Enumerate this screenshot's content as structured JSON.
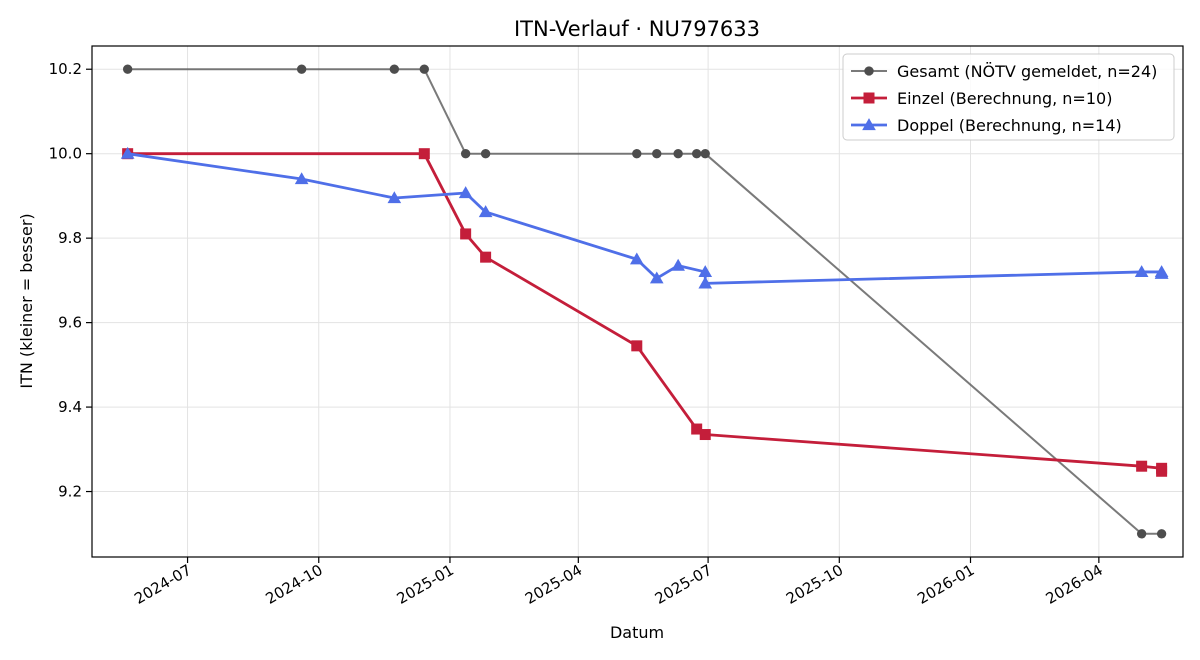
{
  "chart_data": {
    "type": "line",
    "title": "ITN-Verlauf · NU797633",
    "xlabel": "Datum",
    "ylabel": "ITN  (kleiner = besser)",
    "x_axis_type": "date",
    "xlim": [
      "2024-04-25",
      "2026-05-30"
    ],
    "ylim": [
      9.045,
      10.255
    ],
    "x_ticks": [
      "2024-07-01",
      "2024-10-01",
      "2025-01-01",
      "2025-04-01",
      "2025-07-01",
      "2025-10-01",
      "2026-01-01",
      "2026-04-01"
    ],
    "x_tick_labels": [
      "2024-07",
      "2024-10",
      "2025-01",
      "2025-04",
      "2025-07",
      "2025-10",
      "2026-01",
      "2026-04"
    ],
    "y_ticks": [
      9.2,
      9.4,
      9.6,
      9.8,
      10.0,
      10.2
    ],
    "y_tick_labels": [
      "9.2",
      "9.4",
      "9.6",
      "9.8",
      "10.0",
      "10.2"
    ],
    "grid": true,
    "legend_position": "top-right",
    "series": [
      {
        "name": "Gesamt (NÖTV gemeldet, n=24)",
        "color": "#4d4d4d",
        "marker": "circle",
        "x": [
          "2024-05-20",
          "2024-09-19",
          "2024-11-23",
          "2024-12-14",
          "2025-01-12",
          "2025-01-26",
          "2025-05-12",
          "2025-05-26",
          "2025-06-10",
          "2025-06-23",
          "2025-06-29",
          "2026-05-01",
          "2026-05-15"
        ],
        "y": [
          10.2,
          10.2,
          10.2,
          10.2,
          10.0,
          10.0,
          10.0,
          10.0,
          10.0,
          10.0,
          10.0,
          9.1,
          9.1
        ]
      },
      {
        "name": "Einzel (Berechnung, n=10)",
        "color": "#c41e3a",
        "marker": "square",
        "x": [
          "2024-05-20",
          "2024-12-14",
          "2025-01-12",
          "2025-01-26",
          "2025-05-12",
          "2025-06-23",
          "2025-06-29",
          "2026-05-01",
          "2026-05-15",
          "2026-05-15"
        ],
        "y": [
          10.0,
          10.0,
          9.81,
          9.755,
          9.545,
          9.348,
          9.335,
          9.26,
          9.255,
          9.248
        ]
      },
      {
        "name": "Doppel (Berechnung, n=14)",
        "color": "#4f6fe8",
        "marker": "triangle",
        "x": [
          "2024-05-20",
          "2024-09-19",
          "2024-11-23",
          "2025-01-12",
          "2025-01-26",
          "2025-05-12",
          "2025-05-26",
          "2025-06-10",
          "2025-06-29",
          "2025-06-29",
          "2026-05-01",
          "2026-05-15",
          "2026-05-15",
          "2026-05-15"
        ],
        "y": [
          10.0,
          9.94,
          9.895,
          9.907,
          9.862,
          9.75,
          9.705,
          9.735,
          9.72,
          9.693,
          9.72,
          9.72,
          9.716,
          9.716
        ]
      }
    ]
  }
}
